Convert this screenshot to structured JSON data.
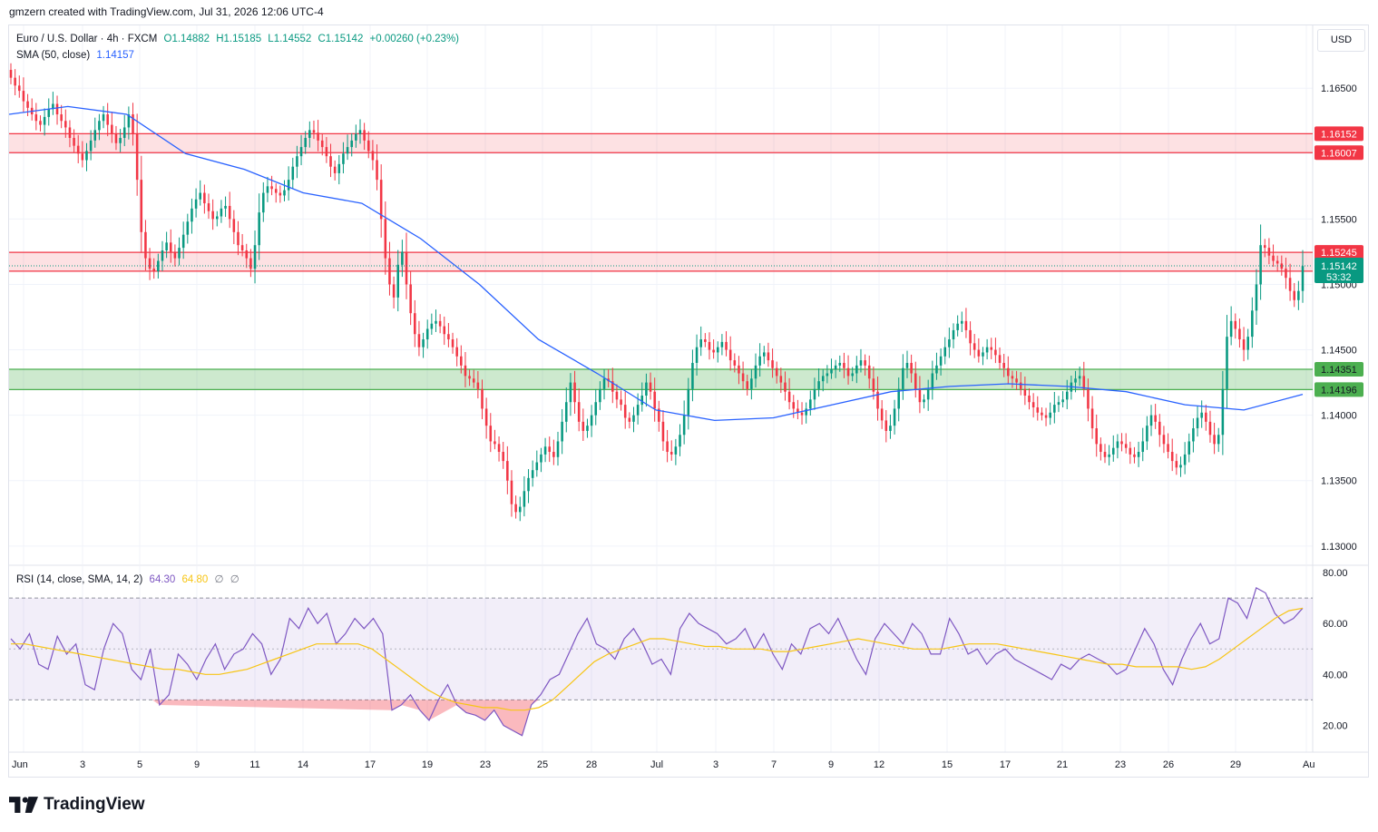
{
  "header": {
    "text": "gmzern created with TradingView.com, Jul 31, 2026 12:06 UTC-4"
  },
  "legend": {
    "symbol": "Euro / U.S. Dollar · 4h · FXCM",
    "ohlc": {
      "o": "O1.14882",
      "h": "H1.15185",
      "l": "L1.14552",
      "c": "C1.15142",
      "chg": "+0.00260 (+0.23%)"
    },
    "sma_label": "SMA (50, close)",
    "sma_value": "1.14157"
  },
  "rsi_legend": {
    "label": "RSI (14, close, SMA, 14, 2)",
    "rsi_value": "64.30",
    "ma_value": "64.80",
    "na1": "∅",
    "na2": "∅"
  },
  "currency": "USD",
  "footer": {
    "brand": "TradingView"
  },
  "colors": {
    "up": "#089981",
    "down": "#f23645",
    "sma": "#2962ff",
    "rsi": "#7e57c2",
    "rsi_ma": "#f7c515",
    "resistance_zone": "#f23645",
    "support_zone": "#4caf50",
    "axis_text": "#131722",
    "grid": "#f0f3fa"
  },
  "chart_data": [
    {
      "type": "candlestick",
      "title": "Euro / U.S. Dollar · 4h · FXCM",
      "ylim": [
        1.1286,
        1.1698
      ],
      "y_ticks": [
        "1.16500",
        "1.16000",
        "1.15500",
        "1.15000",
        "1.14500",
        "1.14000",
        "1.13500",
        "1.13000"
      ],
      "x_ticks": [
        "Jun",
        "3",
        "5",
        "9",
        "11",
        "14",
        "17",
        "19",
        "23",
        "25",
        "28",
        "Jul",
        "3",
        "7",
        "9",
        "12",
        "15",
        "17",
        "21",
        "23",
        "26",
        "29",
        "Au"
      ],
      "grid": true,
      "close_series": [
        1.1658,
        1.1652,
        1.1648,
        1.164,
        1.1635,
        1.163,
        1.1625,
        1.1622,
        1.1628,
        1.1634,
        1.1638,
        1.163,
        1.1625,
        1.162,
        1.1612,
        1.1606,
        1.16,
        1.1595,
        1.1602,
        1.161,
        1.1618,
        1.1625,
        1.163,
        1.1622,
        1.1615,
        1.1608,
        1.1612,
        1.162,
        1.163,
        1.1615,
        1.158,
        1.154,
        1.152,
        1.1512,
        1.151,
        1.1518,
        1.1526,
        1.1532,
        1.1525,
        1.152,
        1.1528,
        1.1538,
        1.1548,
        1.1558,
        1.1565,
        1.157,
        1.1562,
        1.1556,
        1.155,
        1.1552,
        1.1558,
        1.156,
        1.155,
        1.154,
        1.153,
        1.1526,
        1.152,
        1.1512,
        1.153,
        1.1555,
        1.157,
        1.1575,
        1.1573,
        1.157,
        1.1568,
        1.1572,
        1.158,
        1.159,
        1.1598,
        1.1605,
        1.1612,
        1.1618,
        1.1616,
        1.161,
        1.1605,
        1.1598,
        1.159,
        1.1585,
        1.1592,
        1.16,
        1.1605,
        1.161,
        1.1615,
        1.1618,
        1.161,
        1.1602,
        1.1595,
        1.158,
        1.155,
        1.152,
        1.15,
        1.149,
        1.1515,
        1.1525,
        1.15,
        1.1478,
        1.1462,
        1.1452,
        1.1458,
        1.1466,
        1.147,
        1.1472,
        1.1468,
        1.1462,
        1.1458,
        1.1452,
        1.1445,
        1.1438,
        1.143,
        1.1428,
        1.1425,
        1.142,
        1.1405,
        1.1392,
        1.138,
        1.1378,
        1.1372,
        1.1365,
        1.135,
        1.1332,
        1.1326,
        1.133,
        1.1342,
        1.1352,
        1.1358,
        1.1364,
        1.137,
        1.1376,
        1.1372,
        1.1368,
        1.138,
        1.1395,
        1.141,
        1.1425,
        1.141,
        1.1395,
        1.1388,
        1.1392,
        1.14,
        1.141,
        1.142,
        1.1428,
        1.1426,
        1.1418,
        1.1412,
        1.1408,
        1.1398,
        1.1395,
        1.14,
        1.1408,
        1.1415,
        1.1425,
        1.1418,
        1.1405,
        1.1395,
        1.138,
        1.1372,
        1.137,
        1.1376,
        1.1385,
        1.14,
        1.142,
        1.144,
        1.1452,
        1.1458,
        1.1456,
        1.145,
        1.1448,
        1.1452,
        1.1456,
        1.145,
        1.1442,
        1.1438,
        1.1432,
        1.1426,
        1.142,
        1.1428,
        1.1438,
        1.1445,
        1.1448,
        1.1442,
        1.1436,
        1.143,
        1.1425,
        1.1418,
        1.141,
        1.1405,
        1.1402,
        1.14,
        1.1405,
        1.1412,
        1.142,
        1.1426,
        1.143,
        1.1432,
        1.1435,
        1.1438,
        1.144,
        1.1436,
        1.143,
        1.1432,
        1.1438,
        1.1442,
        1.1438,
        1.1428,
        1.1418,
        1.1405,
        1.1396,
        1.1388,
        1.1392,
        1.1405,
        1.142,
        1.1436,
        1.144,
        1.1432,
        1.142,
        1.141,
        1.1412,
        1.142,
        1.1432,
        1.1438,
        1.1445,
        1.1452,
        1.1458,
        1.1465,
        1.147,
        1.1472,
        1.1465,
        1.1455,
        1.145,
        1.1445,
        1.1448,
        1.1452,
        1.145,
        1.1446,
        1.144,
        1.1436,
        1.143,
        1.1428,
        1.1425,
        1.142,
        1.1415,
        1.141,
        1.1406,
        1.1402,
        1.14,
        1.1398,
        1.1402,
        1.1408,
        1.141,
        1.1412,
        1.1418,
        1.1425,
        1.1428,
        1.143,
        1.142,
        1.1405,
        1.139,
        1.1378,
        1.1372,
        1.1368,
        1.137,
        1.1375,
        1.138,
        1.1378,
        1.1375,
        1.137,
        1.1368,
        1.1372,
        1.138,
        1.1392,
        1.14,
        1.1395,
        1.1385,
        1.1378,
        1.1372,
        1.1365,
        1.136,
        1.1362,
        1.137,
        1.138,
        1.139,
        1.1398,
        1.1402,
        1.1395,
        1.1385,
        1.1378,
        1.1385,
        1.142,
        1.146,
        1.1472,
        1.1466,
        1.1458,
        1.145,
        1.146,
        1.148,
        1.15,
        1.153,
        1.1528,
        1.1522,
        1.1518,
        1.1516,
        1.1512,
        1.1505,
        1.1495,
        1.1488,
        1.1495,
        1.1514
      ],
      "sma50": {
        "name": "SMA (50, close)",
        "x": [
          "Jun 1",
          "Jun 3",
          "Jun 5",
          "Jun 9",
          "Jun 11",
          "Jun 14",
          "Jun 17",
          "Jun 19",
          "Jun 23",
          "Jun 25",
          "Jun 28",
          "Jul 1",
          "Jul 3",
          "Jul 7",
          "Jul 9",
          "Jul 12",
          "Jul 15",
          "Jul 17",
          "Jul 21",
          "Jul 23",
          "Jul 26",
          "Jul 29",
          "Jul 31"
        ],
        "y": [
          1.163,
          1.1636,
          1.163,
          1.16,
          1.1588,
          1.157,
          1.1562,
          1.1535,
          1.15,
          1.1458,
          1.1432,
          1.1404,
          1.1396,
          1.1398,
          1.1408,
          1.1418,
          1.1422,
          1.1424,
          1.1422,
          1.1418,
          1.1408,
          1.1404,
          1.1416
        ]
      },
      "zones": [
        {
          "label": "1.16152",
          "low": 1.16007,
          "high": 1.16152,
          "kind": "resistance"
        },
        {
          "label": "1.16007",
          "value": 1.16007,
          "kind": "resistance"
        },
        {
          "label": "1.15245",
          "low": 1.15101,
          "high": 1.15245,
          "kind": "resistance"
        },
        {
          "label": "1.15101",
          "value": 1.15101,
          "kind": "resistance"
        },
        {
          "label": "1.14351",
          "low": 1.14196,
          "high": 1.14351,
          "kind": "support"
        },
        {
          "label": "1.14196",
          "value": 1.14196,
          "kind": "support"
        }
      ],
      "last_price": {
        "value": "1.15142",
        "countdown": "53:32"
      }
    },
    {
      "type": "line",
      "title": "RSI (14, close, SMA, 14, 2)",
      "ylim": [
        9.5,
        82.5
      ],
      "y_ticks": [
        "80.00",
        "60.00",
        "40.00",
        "20.00"
      ],
      "bands": {
        "upper": 70,
        "middle": 50,
        "lower": 30
      },
      "series": [
        {
          "name": "RSI",
          "values": [
            54,
            50,
            56,
            44,
            42,
            55,
            48,
            52,
            36,
            34,
            50,
            60,
            56,
            42,
            38,
            50,
            28,
            32,
            48,
            44,
            38,
            46,
            52,
            42,
            48,
            50,
            56,
            52,
            40,
            46,
            62,
            58,
            66,
            60,
            64,
            52,
            56,
            62,
            58,
            62,
            56,
            26,
            28,
            32,
            26,
            22,
            30,
            36,
            28,
            25,
            24,
            22,
            26,
            20,
            18,
            16,
            28,
            32,
            38,
            40,
            48,
            56,
            62,
            52,
            50,
            46,
            54,
            58,
            52,
            44,
            46,
            40,
            58,
            64,
            60,
            58,
            56,
            52,
            54,
            58,
            50,
            56,
            48,
            42,
            52,
            48,
            58,
            60,
            56,
            62,
            54,
            46,
            40,
            54,
            60,
            56,
            52,
            60,
            56,
            48,
            48,
            62,
            56,
            48,
            50,
            44,
            48,
            50,
            46,
            44,
            42,
            40,
            38,
            44,
            42,
            46,
            48,
            46,
            44,
            40,
            42,
            50,
            58,
            52,
            42,
            36,
            46,
            54,
            60,
            52,
            54,
            70,
            68,
            62,
            74,
            72,
            64,
            60,
            62,
            66
          ],
          "x_range": [
            "Jun 1",
            "Jul 31"
          ]
        },
        {
          "name": "RSI-based MA",
          "values": [
            52,
            52,
            51,
            50,
            49,
            48,
            47,
            46,
            45,
            44,
            43,
            42,
            42,
            41,
            40,
            40,
            41,
            42,
            44,
            46,
            48,
            50,
            52,
            52,
            52,
            52,
            50,
            46,
            42,
            38,
            34,
            31,
            29,
            28,
            27,
            27,
            26,
            26,
            27,
            30,
            35,
            40,
            45,
            48,
            50,
            52,
            54,
            54,
            53,
            52,
            51,
            51,
            50,
            50,
            50,
            49,
            49,
            50,
            51,
            52,
            53,
            54,
            53,
            52,
            51,
            50,
            50,
            50,
            51,
            52,
            52,
            52,
            51,
            50,
            49,
            48,
            47,
            46,
            45,
            44,
            44,
            43,
            43,
            43,
            43,
            42,
            43,
            46,
            50,
            54,
            58,
            62,
            65,
            66
          ],
          "x_range": [
            "Jun 1",
            "Jul 31"
          ]
        }
      ]
    }
  ]
}
